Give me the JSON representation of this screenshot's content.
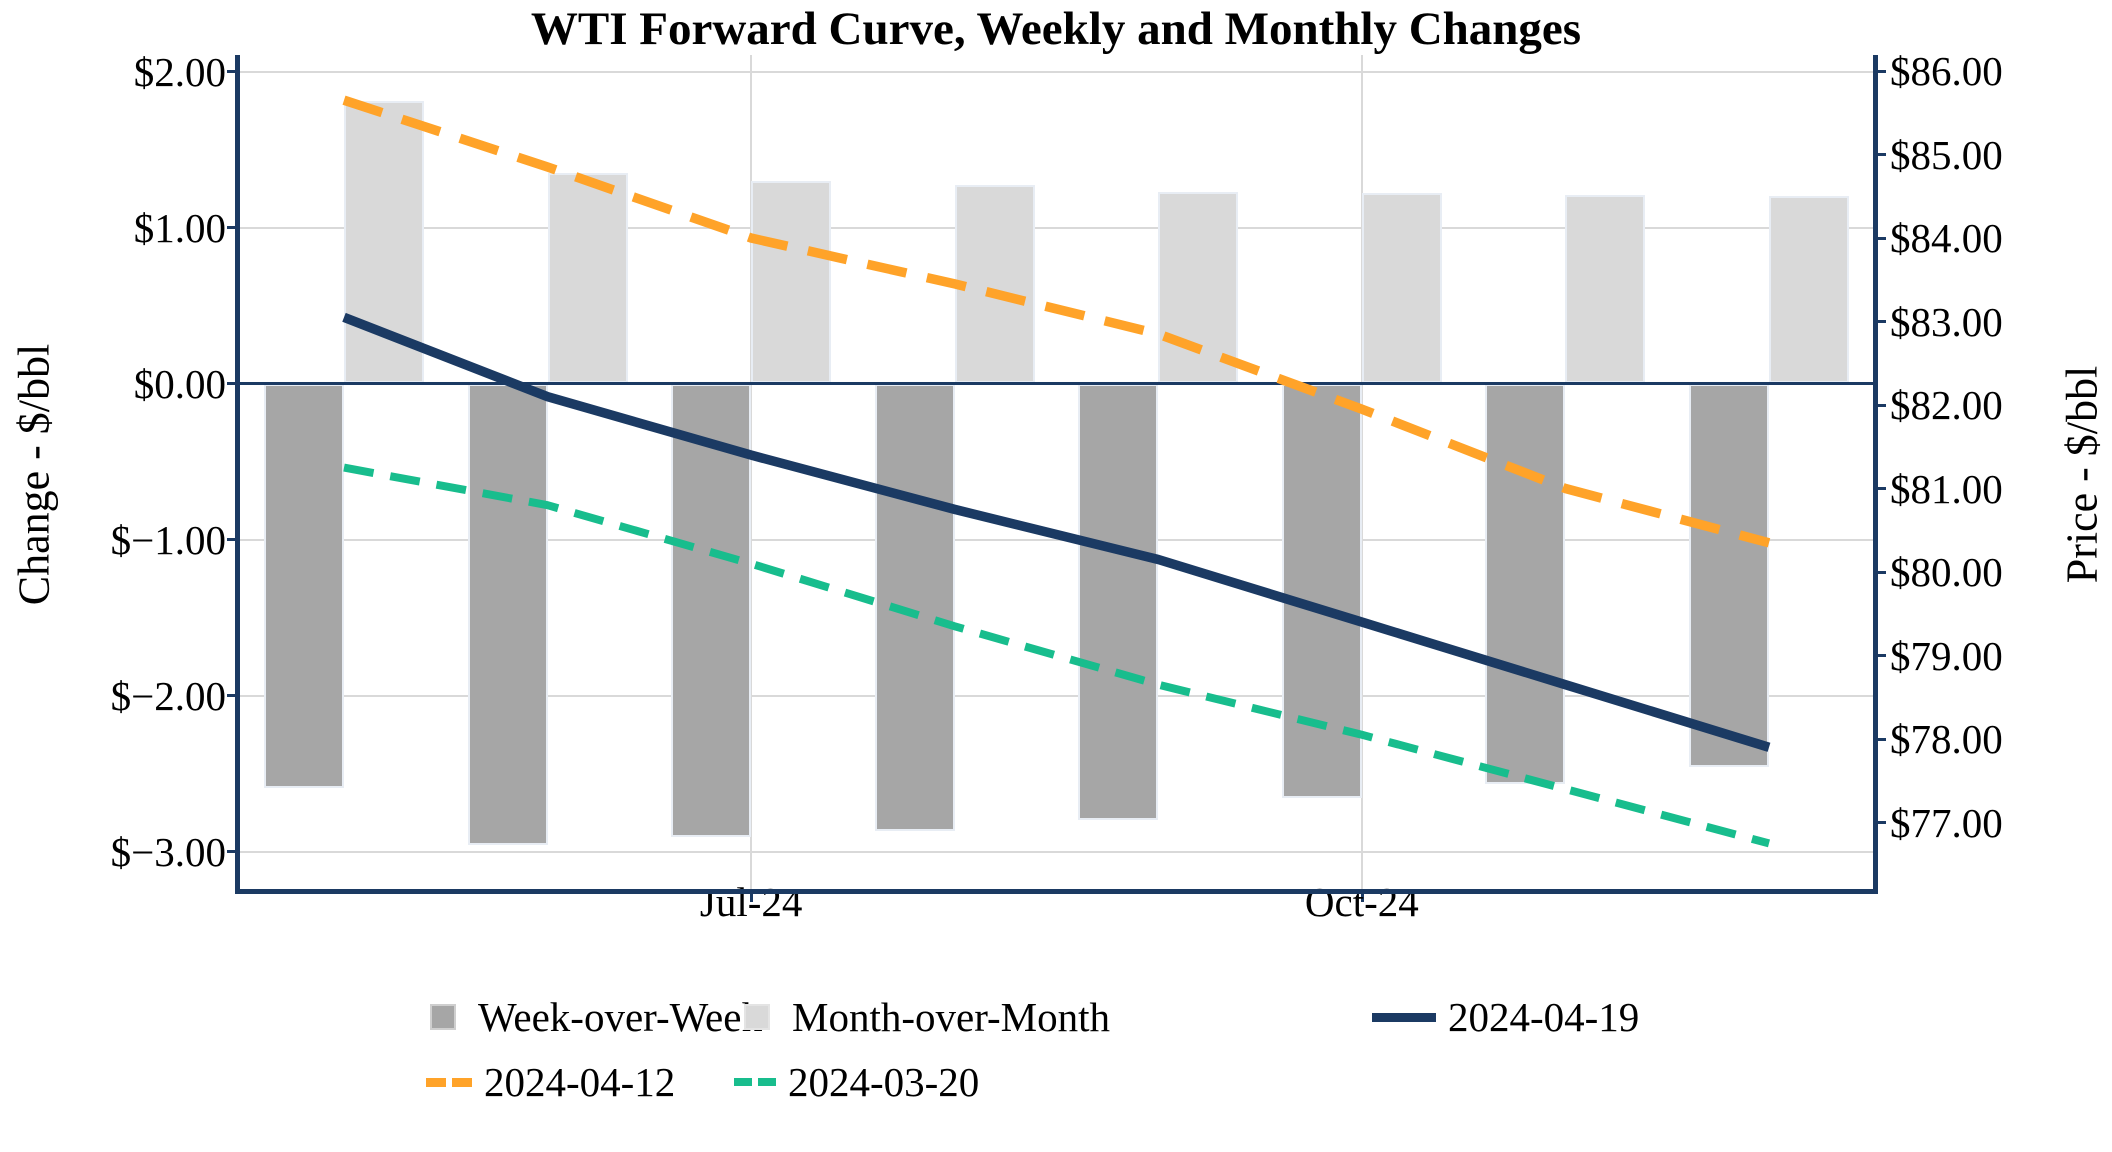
{
  "title": "WTI Forward Curve, Weekly and Monthly Changes",
  "left_axis": {
    "title": "Change - $/bbl",
    "tick_labels": [
      "$2.00",
      "$1.00",
      "$0.00",
      "$−1.00",
      "$−2.00",
      "$−3.00"
    ],
    "tick_values": [
      2,
      1,
      0,
      -1,
      -2,
      -3
    ]
  },
  "right_axis": {
    "title": "Price - $/bbl",
    "tick_labels": [
      "$86.00",
      "$85.00",
      "$84.00",
      "$83.00",
      "$82.00",
      "$81.00",
      "$80.00",
      "$79.00",
      "$78.00",
      "$77.00"
    ],
    "tick_values": [
      86,
      85,
      84,
      83,
      82,
      81,
      80,
      79,
      78,
      77
    ]
  },
  "x_axis": {
    "tick_labels": [
      {
        "slot": 3,
        "label": "Jul-24"
      },
      {
        "slot": 6,
        "label": "Oct-24"
      }
    ]
  },
  "legend": {
    "week_over_week": "Week-over-Week",
    "month_over_month": "Month-over-Month",
    "line_2024_04_19": "2024-04-19",
    "line_2024_04_12": "2024-04-12",
    "line_2024_03_20": "2024-03-20"
  },
  "colors": {
    "wow_bar": "#a6a6a6",
    "mom_bar": "#d9d9d9",
    "navy": "#1b3a63",
    "orange": "#ffa329",
    "green": "#18bd8d",
    "gridline": "#d9d9d9"
  },
  "chart_data": {
    "type": "combo: bars + lines, dual y-axis",
    "n_categories": 8,
    "x_tick_labels_shown": [
      {
        "slot": 3,
        "label": "Jul-24"
      },
      {
        "slot": 6,
        "label": "Oct-24"
      }
    ],
    "bar_series": [
      {
        "name": "Week-over-Week",
        "axis": "left (Change - $/bbl)",
        "color": "#a6a6a6",
        "values": [
          -2.59,
          -2.96,
          -2.91,
          -2.87,
          -2.8,
          -2.66,
          -2.57,
          -2.46
        ]
      },
      {
        "name": "Month-over-Month",
        "axis": "left (Change - $/bbl)",
        "color": "#d9d9d9",
        "values": [
          1.81,
          1.35,
          1.3,
          1.27,
          1.23,
          1.22,
          1.21,
          1.2
        ]
      }
    ],
    "line_series": [
      {
        "name": "2024-04-19",
        "axis": "right (Price - $/bbl)",
        "style": "solid",
        "color": "#1b3a63",
        "values": [
          83.05,
          82.1,
          81.4,
          80.75,
          80.15,
          79.4,
          78.65,
          77.9
        ]
      },
      {
        "name": "2024-04-12",
        "axis": "right (Price - $/bbl)",
        "style": "dashed",
        "color": "#ffa329",
        "values": [
          85.65,
          84.85,
          84.0,
          83.45,
          82.85,
          81.95,
          81.0,
          80.35
        ]
      },
      {
        "name": "2024-03-20",
        "axis": "right (Price - $/bbl)",
        "style": "dashed",
        "color": "#18bd8d",
        "values": [
          81.25,
          80.8,
          80.1,
          79.35,
          78.65,
          78.05,
          77.4,
          76.75
        ]
      }
    ],
    "left_ylim": [
      -3.24,
      2.11
    ],
    "right_ylim": [
      76.2,
      86.2
    ],
    "grid": "horizontal gridlines at every $1.00 of change axis; vertical gridlines at labeled x ticks",
    "legend_position": "below chart, two rows"
  }
}
